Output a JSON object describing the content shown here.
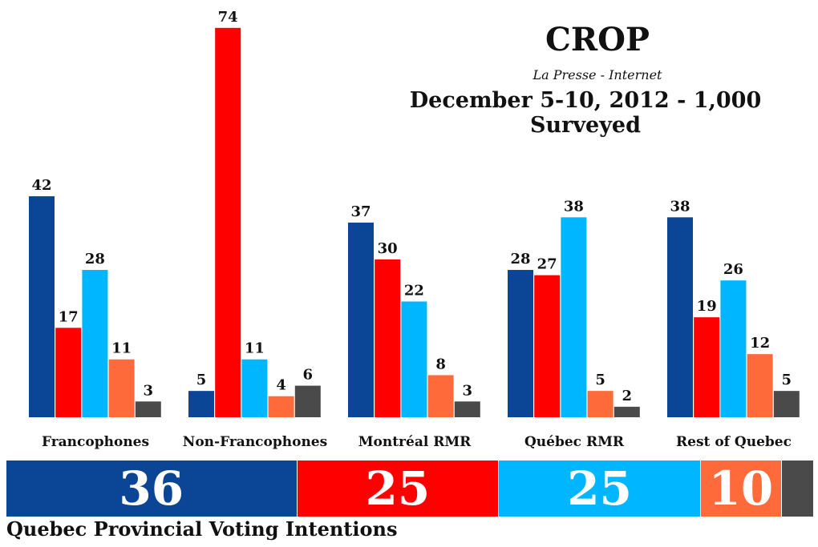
{
  "header": {
    "title": "CROP",
    "subtitle": "La Presse - Internet",
    "date": "December 5-10, 2012 - 1,000 Surveyed"
  },
  "footer": {
    "label": "Quebec Provincial Voting Intentions"
  },
  "colors": {
    "navy": "#0b4596",
    "red": "#ff0000",
    "sky": "#00b6ff",
    "orange": "#ff6a3a",
    "grey": "#4a4a4a"
  },
  "chart_data": {
    "type": "bar",
    "title": "CROP",
    "subtitle": "La Presse - Internet",
    "note": "December 5-10, 2012 - 1,000 Surveyed",
    "categories": [
      "Francophones",
      "Non-Francophones",
      "Montréal RMR",
      "Québec RMR",
      "Rest of Quebec"
    ],
    "series": [
      {
        "name": "series-1",
        "color": "#0b4596",
        "values": [
          42,
          5,
          37,
          28,
          38
        ]
      },
      {
        "name": "series-2",
        "color": "#ff0000",
        "values": [
          17,
          74,
          30,
          27,
          19
        ]
      },
      {
        "name": "series-3",
        "color": "#00b6ff",
        "values": [
          28,
          11,
          22,
          38,
          26
        ]
      },
      {
        "name": "series-4",
        "color": "#ff6a3a",
        "values": [
          11,
          4,
          8,
          5,
          12
        ]
      },
      {
        "name": "series-5",
        "color": "#4a4a4a",
        "values": [
          3,
          6,
          3,
          2,
          5
        ]
      }
    ],
    "ylim": [
      0,
      80
    ],
    "xlabel": "",
    "ylabel": "",
    "overall": {
      "type": "stacked-bar",
      "segments": [
        {
          "value": 36,
          "label": "36",
          "color": "#0b4596"
        },
        {
          "value": 25,
          "label": "25",
          "color": "#ff0000"
        },
        {
          "value": 25,
          "label": "25",
          "color": "#00b6ff"
        },
        {
          "value": 10,
          "label": "10",
          "color": "#ff6a3a"
        },
        {
          "value": 4,
          "label": "",
          "color": "#4a4a4a"
        }
      ]
    }
  }
}
